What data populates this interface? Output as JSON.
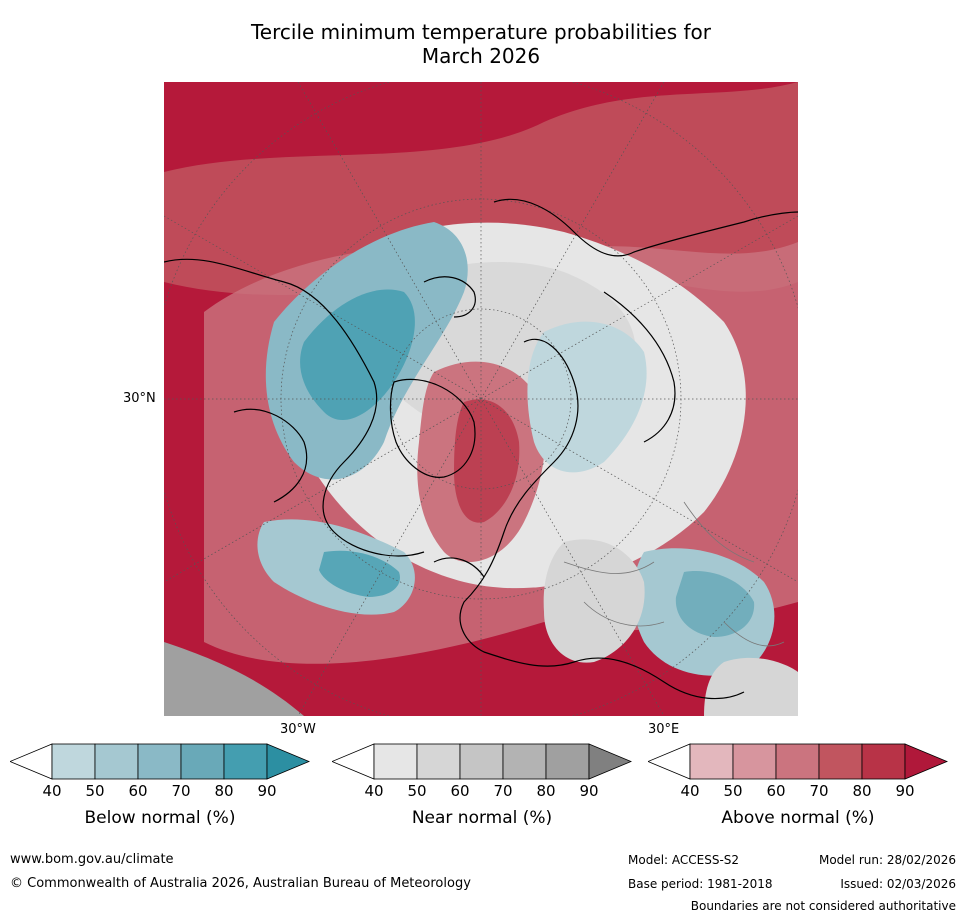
{
  "title": {
    "line1": "Tercile minimum temperature probabilities for",
    "line2": "March 2026"
  },
  "map": {
    "region": "Northern Hemisphere polar stereographic",
    "lat_label": "30°N",
    "lon_labels": {
      "west": "30°W",
      "east": "30°E"
    }
  },
  "colorbars": [
    {
      "title": "Below normal (%)",
      "ticks": [
        "40",
        "50",
        "60",
        "70",
        "80",
        "90"
      ],
      "colors": [
        "#ffffff",
        "#bfd7dd",
        "#a5c8d1",
        "#8ab9c6",
        "#69a9b8",
        "#449eb0",
        "#2c8fa2"
      ]
    },
    {
      "title": "Near normal (%)",
      "ticks": [
        "40",
        "50",
        "60",
        "70",
        "80",
        "90"
      ],
      "colors": [
        "#ffffff",
        "#e6e6e6",
        "#d6d6d6",
        "#c5c5c5",
        "#b3b3b3",
        "#a0a0a0",
        "#808080"
      ]
    },
    {
      "title": "Above normal (%)",
      "ticks": [
        "40",
        "50",
        "60",
        "70",
        "80",
        "90"
      ],
      "colors": [
        "#ffffff",
        "#e3b7bd",
        "#d7959e",
        "#cb747f",
        "#c1555f",
        "#b83347",
        "#b0183a"
      ]
    }
  ],
  "footer": {
    "website": "www.bom.gov.au/climate",
    "copyright": "© Commonwealth of Australia 2026, Australian Bureau of Meteorology",
    "model": "Model: ACCESS-S2",
    "base_period": "Base period: 1981-2018",
    "model_run": "Model run: 28/02/2026",
    "issued": "Issued: 02/03/2026",
    "disclaimer": "Boundaries are not considered authoritative"
  }
}
